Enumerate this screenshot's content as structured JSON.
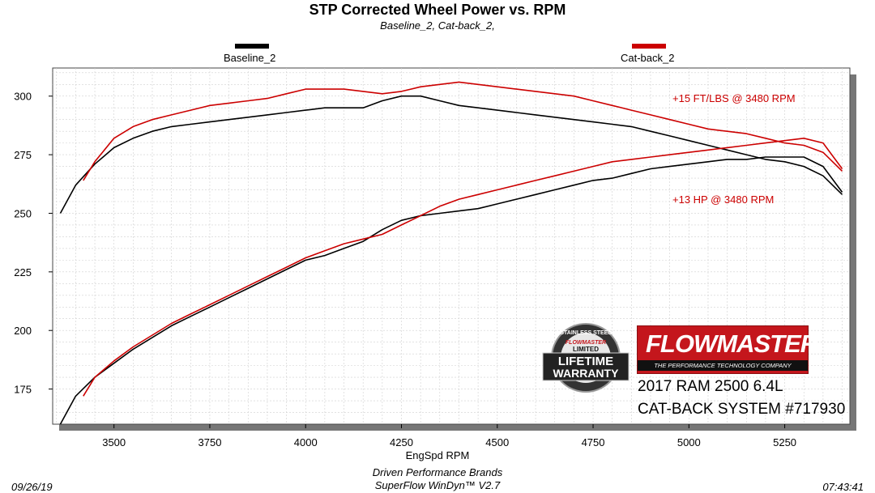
{
  "title": "STP Corrected Wheel Power vs. RPM",
  "subtitle": "Baseline_2, Cat-back_2,",
  "colors": {
    "baseline": "#000000",
    "catback": "#cc0000",
    "annotation": "#cc0000",
    "plot_bg": "#ffffff",
    "grid": "#c8c8c8",
    "shadow": "#777777",
    "brand_red": "#c4161c"
  },
  "chart_data": {
    "type": "line",
    "title": "STP Corrected Wheel Power vs. RPM",
    "subtitle": "Baseline_2, Cat-back_2,",
    "xlabel": "EngSpd  RPM",
    "ylabel": "",
    "xlim": [
      3340,
      5420
    ],
    "ylim": [
      160,
      312
    ],
    "xticks": [
      3500,
      3750,
      4000,
      4250,
      4500,
      4750,
      5000,
      5250
    ],
    "yticks": [
      175,
      200,
      225,
      250,
      275,
      300
    ],
    "grid": true,
    "legend": "top",
    "series": [
      {
        "name": "Baseline_2",
        "color": "#000000",
        "x": [
          3360,
          3400,
          3450,
          3500,
          3550,
          3600,
          3650,
          3700,
          3750,
          3800,
          3850,
          3900,
          3950,
          4000,
          4050,
          4100,
          4150,
          4200,
          4250,
          4300,
          4350,
          4400,
          4450,
          4500,
          4550,
          4600,
          4650,
          4700,
          4750,
          4800,
          4850,
          4900,
          4950,
          5000,
          5050,
          5100,
          5150,
          5200,
          5250,
          5300,
          5350,
          5400
        ],
        "y": [
          250,
          262,
          271,
          278,
          282,
          285,
          287,
          288,
          289,
          290,
          291,
          292,
          293,
          294,
          295,
          295,
          295,
          298,
          300,
          300,
          298,
          296,
          295,
          294,
          293,
          292,
          291,
          290,
          289,
          288,
          287,
          285,
          283,
          281,
          279,
          277,
          275,
          273,
          272,
          270,
          266,
          258
        ]
      },
      {
        "name": "Cat-back_2",
        "color": "#cc0000",
        "x": [
          3420,
          3450,
          3500,
          3550,
          3600,
          3650,
          3700,
          3750,
          3800,
          3850,
          3900,
          3950,
          4000,
          4050,
          4100,
          4150,
          4200,
          4250,
          4300,
          4350,
          4400,
          4450,
          4500,
          4550,
          4600,
          4650,
          4700,
          4750,
          4800,
          4850,
          4900,
          4950,
          5000,
          5050,
          5100,
          5150,
          5200,
          5250,
          5300,
          5350,
          5400
        ],
        "y": [
          264,
          272,
          282,
          287,
          290,
          292,
          294,
          296,
          297,
          298,
          299,
          301,
          303,
          303,
          303,
          302,
          301,
          302,
          304,
          305,
          306,
          305,
          304,
          303,
          302,
          301,
          300,
          298,
          296,
          294,
          292,
          290,
          288,
          286,
          285,
          284,
          282,
          280,
          279,
          276,
          268
        ]
      },
      {
        "name": "Baseline_2 HP",
        "color": "#000000",
        "x": [
          3360,
          3400,
          3450,
          3500,
          3550,
          3600,
          3650,
          3700,
          3750,
          3800,
          3850,
          3900,
          3950,
          4000,
          4050,
          4100,
          4150,
          4200,
          4250,
          4300,
          4350,
          4400,
          4450,
          4500,
          4550,
          4600,
          4650,
          4700,
          4750,
          4800,
          4850,
          4900,
          4950,
          5000,
          5050,
          5100,
          5150,
          5200,
          5250,
          5300,
          5350,
          5400
        ],
        "y": [
          160,
          172,
          180,
          186,
          192,
          197,
          202,
          206,
          210,
          214,
          218,
          222,
          226,
          230,
          232,
          235,
          238,
          243,
          247,
          249,
          250,
          251,
          252,
          254,
          256,
          258,
          260,
          262,
          264,
          265,
          267,
          269,
          270,
          271,
          272,
          273,
          273,
          274,
          274,
          274,
          270,
          259
        ]
      },
      {
        "name": "Cat-back_2 HP",
        "color": "#cc0000",
        "x": [
          3420,
          3450,
          3500,
          3550,
          3600,
          3650,
          3700,
          3750,
          3800,
          3850,
          3900,
          3950,
          4000,
          4050,
          4100,
          4150,
          4200,
          4250,
          4300,
          4350,
          4400,
          4450,
          4500,
          4550,
          4600,
          4650,
          4700,
          4750,
          4800,
          4850,
          4900,
          4950,
          5000,
          5050,
          5100,
          5150,
          5200,
          5250,
          5300,
          5350,
          5400
        ],
        "y": [
          172,
          180,
          187,
          193,
          198,
          203,
          207,
          211,
          215,
          219,
          223,
          227,
          231,
          234,
          237,
          239,
          241,
          245,
          249,
          253,
          256,
          258,
          260,
          262,
          264,
          266,
          268,
          270,
          272,
          273,
          274,
          275,
          276,
          277,
          278,
          279,
          280,
          281,
          282,
          280,
          269
        ]
      }
    ],
    "annotations": [
      {
        "text": "+15 FT/LBS @ 3480 RPM",
        "color": "#cc0000"
      },
      {
        "text": "+13 HP @ 3480 RPM",
        "color": "#cc0000"
      }
    ]
  },
  "legend": [
    {
      "name": "Baseline_2",
      "color": "#000000"
    },
    {
      "name": "Cat-back_2",
      "color": "#cc0000"
    }
  ],
  "badge": {
    "line1": "STAINLESS STEEL",
    "line2": "FLOWMASTER",
    "line3": "LIMITED",
    "line4": "LIFETIME",
    "line5": "WARRANTY"
  },
  "brand": {
    "name": "FLOWMASTER",
    "tagline": "THE PERFORMANCE TECHNOLOGY COMPANY"
  },
  "vehicle": {
    "line1": "2017 RAM 2500 6.4L",
    "line2": "CAT-BACK SYSTEM #717930"
  },
  "footer": {
    "date": "09/26/19",
    "company": "Driven Performance Brands",
    "software": "SuperFlow WinDyn™  V2.7",
    "time": "07:43:41"
  }
}
